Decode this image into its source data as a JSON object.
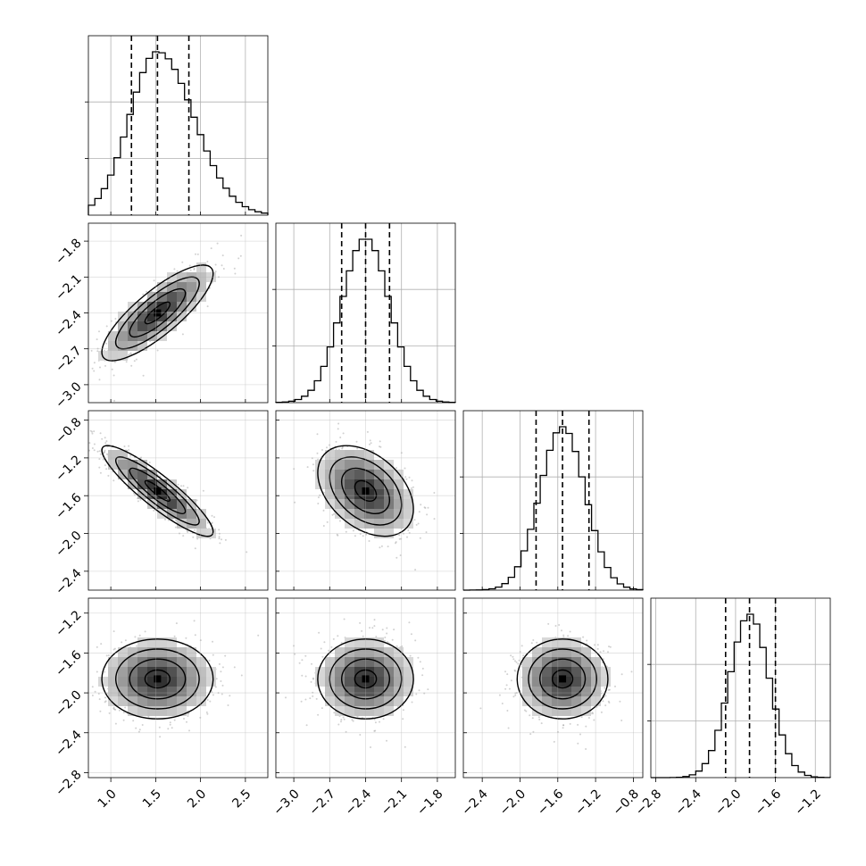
{
  "chart_data": {
    "type": "corner",
    "parameters": [
      {
        "mean": 1.52,
        "sd": 0.31,
        "range": [
          0.75,
          2.75
        ],
        "ticks": [
          1.0,
          1.5,
          2.0,
          2.5
        ],
        "tick_labels": [
          "1.0",
          "1.5",
          "2.0",
          "2.5"
        ],
        "quantiles": [
          1.23,
          1.52,
          1.87
        ]
      },
      {
        "mean": -2.4,
        "sd": 0.2,
        "range": [
          -3.15,
          -1.65
        ],
        "ticks": [
          -3.0,
          -2.7,
          -2.4,
          -2.1,
          -1.8
        ],
        "tick_labels": [
          "−3.0",
          "−2.7",
          "−2.4",
          "−2.1",
          "−1.8"
        ],
        "quantiles": [
          -2.6,
          -2.4,
          -2.2
        ]
      },
      {
        "mean": -1.55,
        "sd": 0.24,
        "range": [
          -2.6,
          -0.7
        ],
        "ticks": [
          -2.4,
          -2.0,
          -1.6,
          -1.2,
          -0.8
        ],
        "tick_labels": [
          "−2.4",
          "−2.0",
          "−1.6",
          "−1.2",
          "−0.8"
        ],
        "quantiles": [
          -1.83,
          -1.55,
          -1.27
        ]
      },
      {
        "mean": -1.86,
        "sd": 0.2,
        "range": [
          -2.85,
          -1.05
        ],
        "ticks": [
          -2.8,
          -2.4,
          -2.0,
          -1.6,
          -1.2
        ],
        "tick_labels": [
          "−2.8",
          "−2.4",
          "−2.0",
          "−1.6",
          "−1.2"
        ],
        "quantiles": [
          -2.1,
          -1.86,
          -1.6
        ]
      }
    ],
    "correlations": [
      {
        "pair": [
          0,
          1
        ],
        "r": 0.82
      },
      {
        "pair": [
          0,
          2
        ],
        "r": -0.9
      },
      {
        "pair": [
          1,
          2
        ],
        "r": -0.4
      },
      {
        "pair": [
          0,
          3
        ],
        "r": 0.0
      },
      {
        "pair": [
          1,
          3
        ],
        "r": 0.0
      },
      {
        "pair": [
          2,
          3
        ],
        "r": 0.0
      }
    ],
    "histogram_style": "step",
    "quantile_lines": "dashed",
    "contour_levels": 4,
    "grid": true
  }
}
